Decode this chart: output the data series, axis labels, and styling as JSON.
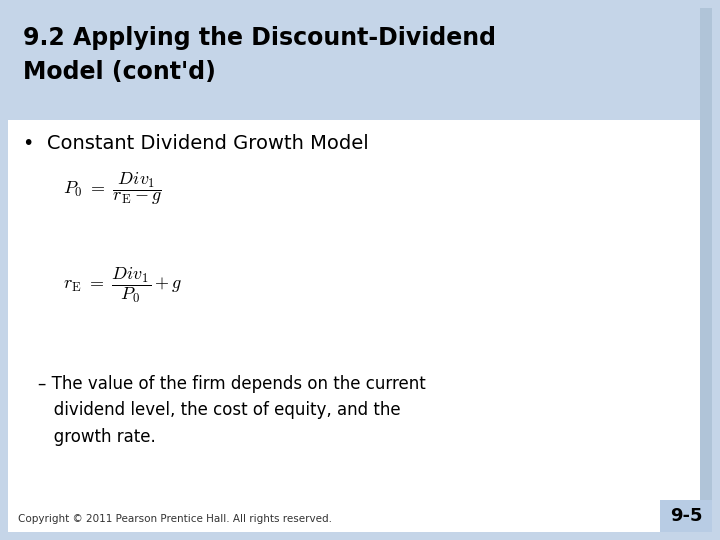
{
  "bg_color": "#c5d5e8",
  "slide_bg": "#ffffff",
  "title_line1": "9.2 Applying the Discount-Dividend",
  "title_line2": "Model (cont'd)",
  "title_color": "#000000",
  "title_fontsize": 17,
  "bullet_text": "Constant Dividend Growth Model",
  "bullet_fontsize": 14,
  "formula_fontsize": 13,
  "dash_text": "– The value of the firm depends on the current\n   dividend level, the cost of equity, and the\n   growth rate.",
  "dash_fontsize": 12,
  "footer_text": "Copyright © 2011 Pearson Prentice Hall. All rights reserved.",
  "footer_fontsize": 7.5,
  "page_number": "9-5",
  "page_num_fontsize": 13,
  "page_num_bg": "#b8cce4",
  "title_bar_color": "#c5d5e8",
  "border_color": "#b0c4d8"
}
